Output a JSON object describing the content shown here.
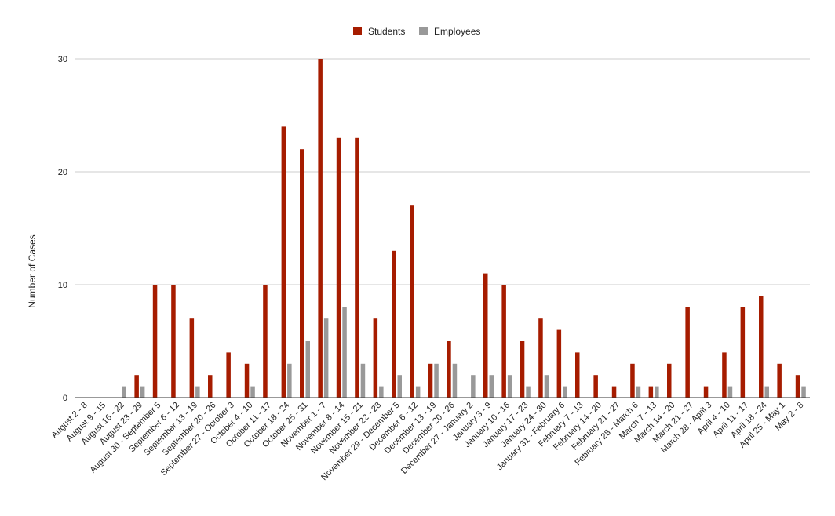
{
  "colors": {
    "students": "#a61c00",
    "employees": "#999999",
    "grid": "#cccccc",
    "axis": "#333333"
  },
  "chart_data": {
    "type": "bar",
    "title": "",
    "xlabel": "",
    "ylabel": "Number of Cases",
    "ylim": [
      0,
      30
    ],
    "yticks": [
      0,
      10,
      20,
      30
    ],
    "grid": true,
    "legend_position": "top-center",
    "categories": [
      "August 2 - 8",
      "August 9 - 15",
      "August 16 - 22",
      "August 23 - 29",
      "August 30 - September 5",
      "September 6 - 12",
      "September 13 - 19",
      "September 20 - 26",
      "September 27 - October 3",
      "October 4 - 10",
      "October 11 - 17",
      "October 18 - 24",
      "October 25 - 31",
      "November 1 - 7",
      "November 8 - 14",
      "November 15 - 21",
      "November 22 - 28",
      "November 29 - December 5",
      "December 6 - 12",
      "December 13 - 19",
      "December 20 - 26",
      "December 27 - January 2",
      "January 3 - 9",
      "January 10 - 16",
      "January 17 - 23",
      "January 24 - 30",
      "January 31 - February 6",
      "February 7 - 13",
      "February 14 - 20",
      "February 21 - 27",
      "February 28 - March 6",
      "March 7 - 13",
      "March 14 - 20",
      "March 21 - 27",
      "March 28 - April 3",
      "April 4 - 10",
      "April 11 - 17",
      "April 18 - 24",
      "April 25 - May 1",
      "May 2 - 8"
    ],
    "series": [
      {
        "name": "Students",
        "values": [
          0,
          0,
          0,
          2,
          10,
          10,
          7,
          2,
          4,
          3,
          10,
          24,
          22,
          30,
          23,
          23,
          7,
          13,
          17,
          3,
          5,
          0,
          11,
          10,
          5,
          7,
          6,
          4,
          2,
          1,
          3,
          1,
          3,
          8,
          1,
          4,
          8,
          9,
          3,
          2
        ]
      },
      {
        "name": "Employees",
        "values": [
          0,
          0,
          1,
          1,
          0,
          0,
          1,
          0,
          0,
          1,
          0,
          3,
          5,
          7,
          8,
          3,
          1,
          2,
          1,
          3,
          3,
          2,
          2,
          2,
          1,
          2,
          1,
          0,
          0,
          0,
          1,
          1,
          0,
          0,
          0,
          1,
          0,
          1,
          0,
          1
        ]
      }
    ]
  }
}
